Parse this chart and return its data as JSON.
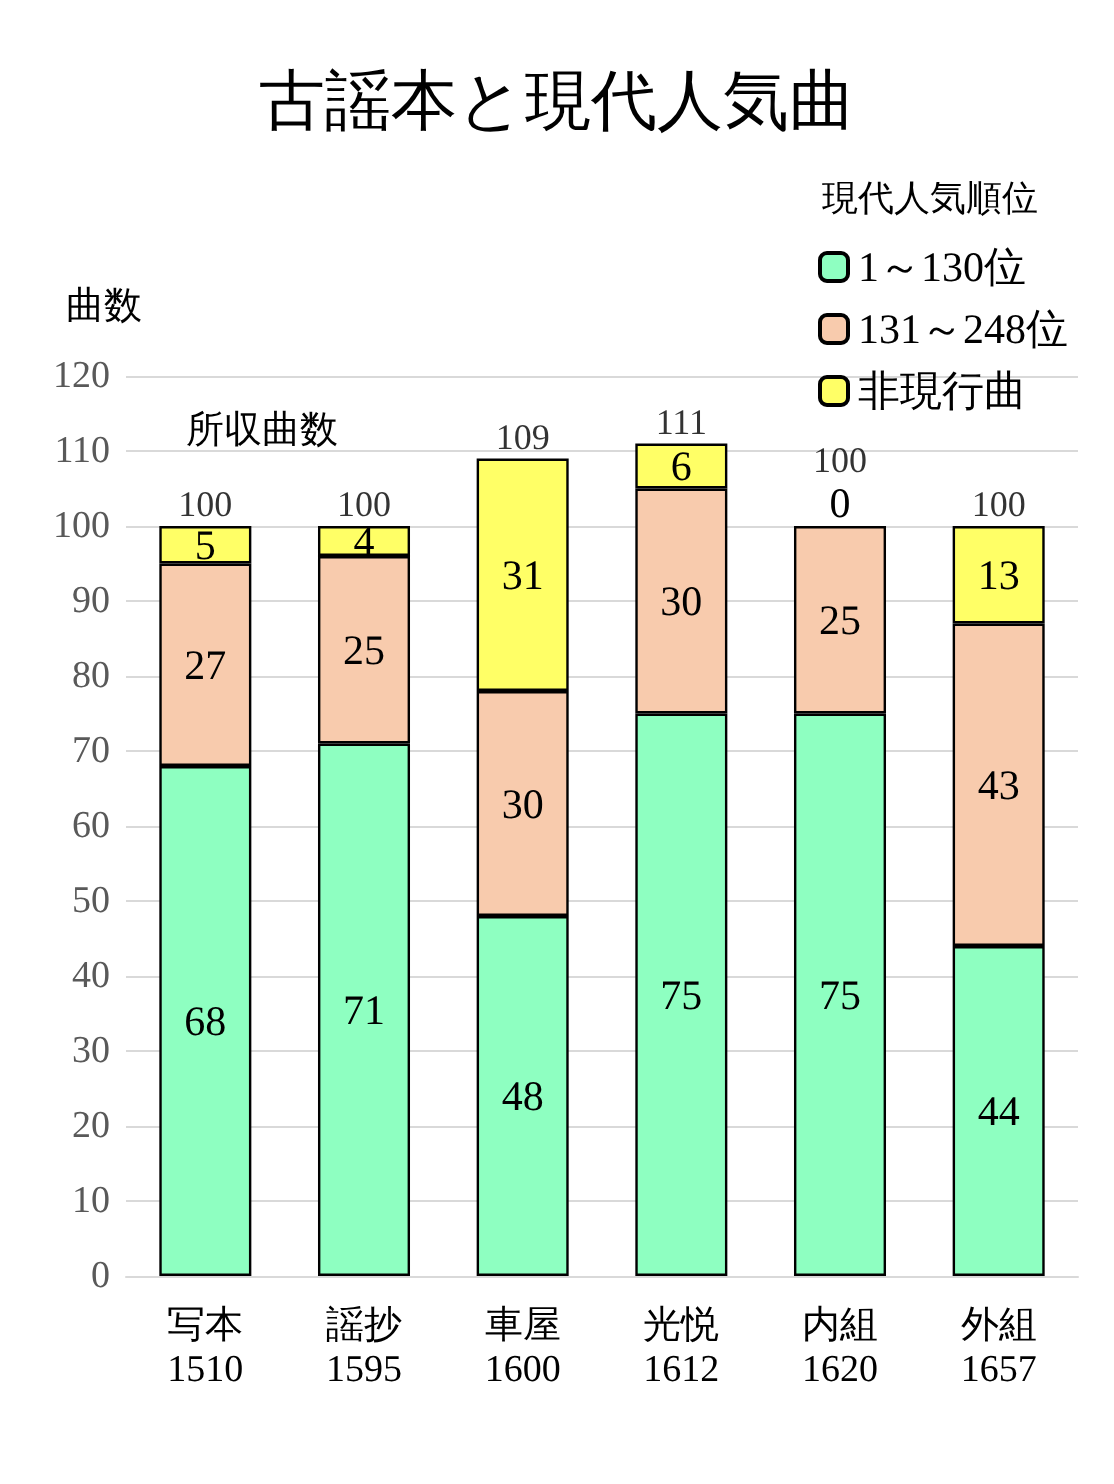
{
  "chart_data": {
    "type": "bar",
    "title": "古謡本と現代人気曲",
    "ylabel": "曲数",
    "legend_title": "現代人気順位",
    "categories": [
      "写本\n1510",
      "謡抄\n1595",
      "車屋\n1600",
      "光悦\n1612",
      "内組\n1620",
      "外組\n1657"
    ],
    "series": [
      {
        "name": "1～130位",
        "color": "#8effc1",
        "values": [
          68,
          71,
          48,
          75,
          75,
          44
        ]
      },
      {
        "name": "131～248位",
        "color": "#f8cbad",
        "values": [
          27,
          25,
          30,
          30,
          25,
          43
        ]
      },
      {
        "name": "非現行曲",
        "color": "#ffff66",
        "values": [
          5,
          4,
          31,
          6,
          0,
          13
        ]
      }
    ],
    "stacked": true,
    "data_labels": true,
    "totals": [
      "100",
      "100",
      "109",
      "111",
      "100",
      "100"
    ],
    "annotations": [
      "所収曲数"
    ],
    "ylim": [
      0,
      120
    ],
    "yticks": [
      0,
      10,
      20,
      30,
      40,
      50,
      60,
      70,
      80,
      90,
      100,
      110,
      120
    ],
    "grid": "y",
    "legend": "top right"
  }
}
